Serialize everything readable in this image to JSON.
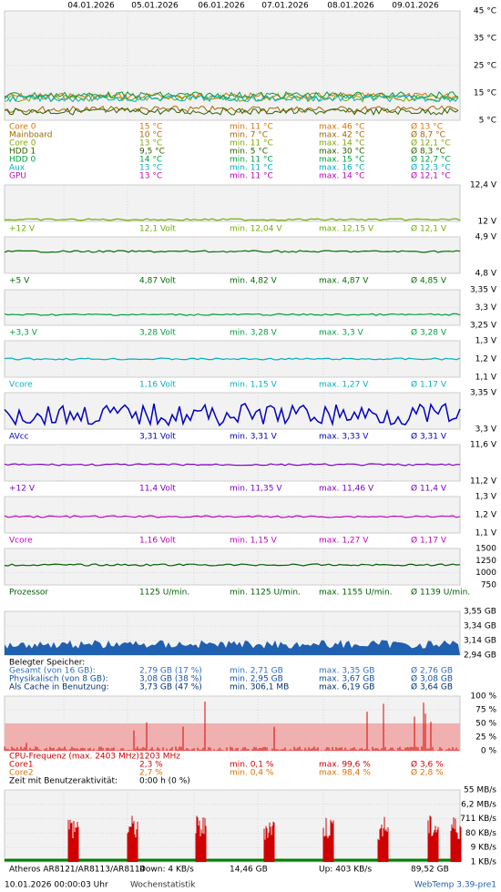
{
  "dates": [
    "04.01.2026",
    "05.01.2026",
    "06.01.2026",
    "07.01.2026",
    "08.01.2026",
    "09.01.2026"
  ],
  "panels": [
    {
      "axis": [
        "45 °C",
        "35 °C",
        "25 °C",
        "15 °C",
        "5 °C"
      ],
      "rows": [
        {
          "color": "#e07000",
          "cells": [
            "Core 0",
            "15 °C",
            "min. 11 °C",
            "max. 46 °C",
            "Ø 13 °C"
          ]
        },
        {
          "color": "#a06800",
          "cells": [
            "Mainboard",
            "10 °C",
            "min. 7 °C",
            "max. 42 °C",
            "Ø 8,7 °C"
          ]
        },
        {
          "color": "#80a800",
          "cells": [
            "Core 0",
            "13 °C",
            "min. 11 °C",
            "max. 14 °C",
            "Ø 12,1 °C"
          ]
        },
        {
          "color": "#306000",
          "cells": [
            "HDD 1",
            "9,5 °C",
            "min. 5 °C",
            "max. 30 °C",
            "Ø 8,3 °C"
          ]
        },
        {
          "color": "#00a040",
          "cells": [
            "HDD 0",
            "14 °C",
            "min. 11 °C",
            "max. 15 °C",
            "Ø 12,7 °C"
          ]
        },
        {
          "color": "#00b0c0",
          "cells": [
            "Aux",
            "13 °C",
            "min. 11 °C",
            "max. 16 °C",
            "Ø 12,3 °C"
          ]
        },
        {
          "color": "#c000c0",
          "cells": [
            "GPU",
            "13 °C",
            "min. 11 °C",
            "max. 14 °C",
            "Ø 12,1 °C"
          ]
        }
      ]
    },
    {
      "axis": [
        "12,4 V",
        "12 V"
      ],
      "rows": [
        {
          "color": "#70b000",
          "cells": [
            "+12 V",
            "12,1 Volt",
            "min. 12,04 V",
            "max. 12,15 V",
            "Ø 12,1 V"
          ]
        }
      ]
    },
    {
      "axis": [
        "4,9 V",
        "4,8 V"
      ],
      "rows": [
        {
          "color": "#007000",
          "cells": [
            "+5 V",
            "4,87 Volt",
            "min. 4,82 V",
            "max. 4,87 V",
            "Ø 4,85 V"
          ]
        }
      ]
    },
    {
      "axis": [
        "3,35 V",
        "3,3 V",
        "3,25 V"
      ],
      "rows": [
        {
          "color": "#00a040",
          "cells": [
            "+3,3 V",
            "3,28 Volt",
            "min. 3,28 V",
            "max. 3,3 V",
            "Ø 3,28 V"
          ]
        }
      ]
    },
    {
      "axis": [
        "1,3 V",
        "1,2 V",
        "1,1 V"
      ],
      "rows": [
        {
          "color": "#00b0c0",
          "cells": [
            "Vcore",
            "1,16 Volt",
            "min. 1,15 V",
            "max. 1,27 V",
            "Ø 1,17 V"
          ]
        }
      ]
    },
    {
      "axis": [
        "3,35 V",
        "3,3 V"
      ],
      "rows": [
        {
          "color": "#0000c0",
          "cells": [
            "AVcc",
            "3,31 Volt",
            "min. 3,31 V",
            "max. 3,33 V",
            "Ø 3,31 V"
          ]
        }
      ]
    },
    {
      "axis": [
        "11,6 V",
        "11,2 V"
      ],
      "rows": [
        {
          "color": "#8000c0",
          "cells": [
            "+12 V",
            "11,4 Volt",
            "min. 11,35 V",
            "max. 11,46 V",
            "Ø 11,4 V"
          ]
        }
      ]
    },
    {
      "axis": [
        "1,3 V",
        "1,2 V",
        "1,1 V"
      ],
      "rows": [
        {
          "color": "#c000c0",
          "cells": [
            "Vcore",
            "1,16 Volt",
            "min. 1,15 V",
            "max. 1,27 V",
            "Ø 1,17 V"
          ]
        }
      ]
    },
    {
      "axis": [
        "1500",
        "1250",
        "1000",
        "750"
      ],
      "rows": [
        {
          "color": "#006000",
          "cells": [
            "Prozessor",
            "1125 U/min.",
            "min. 1125 U/min.",
            "max. 1155 U/min.",
            "Ø 1139 U/min."
          ]
        }
      ]
    },
    {
      "axis": [
        "3,55 GB",
        "3,34 GB",
        "3,14 GB",
        "2,94 GB"
      ],
      "rows": [
        {
          "color": "#000000",
          "cells": [
            "Belegter Speicher:"
          ]
        },
        {
          "color": "#3070c0",
          "cells": [
            "Gesamt (von 16 GB):",
            "2,79 GB (17 %)",
            "min. 2,71 GB",
            "max. 3,35 GB",
            "Ø 2,76 GB"
          ]
        },
        {
          "color": "#1050a0",
          "cells": [
            "Physikalisch (von 8 GB):",
            "3,08 GB (38 %)",
            "min. 2,95 GB",
            "max. 3,67 GB",
            "Ø 3,08 GB"
          ]
        },
        {
          "color": "#003070",
          "cells": [
            "Als Cache in Benutzung:",
            "3,73 GB (47 %)",
            "min. 306,1 MB",
            "max. 6,19 GB",
            "Ø 3,64 GB"
          ]
        }
      ]
    },
    {
      "axis": [
        "100 %",
        "75 %",
        "50 %",
        "25 %",
        "0 %"
      ],
      "rows": [
        {
          "color": "#d00000",
          "cells": [
            "CPU-Frequenz (max. 2403 MHz):",
            "1203 MHz"
          ]
        },
        {
          "color": "#d00000",
          "cells": [
            "Core1",
            "2,3 %",
            "min. 0,1 %",
            "max. 99,6 %",
            "Ø 3,6 %"
          ]
        },
        {
          "color": "#e07000",
          "cells": [
            "Core2",
            "2,7 %",
            "min. 0,4 %",
            "max. 98,4 %",
            "Ø 2,8 %"
          ]
        },
        {
          "color": "#000000",
          "cells": [
            "Zeit mit Benutzeraktivität:",
            "0:00 h (0 %)"
          ]
        }
      ]
    },
    {
      "axis": [
        "55 MB/s",
        "6,2 MB/s",
        "711 KB/s",
        "80 KB/s",
        "9 KB/s",
        "1 KB/s"
      ],
      "rows": [
        {
          "color": "#000000",
          "cells": [
            "Atheros AR8121/AR8113/AR8114",
            "Down: 4 KB/s",
            "14,46 GB",
            "Up: 403 KB/s",
            "89,52 GB"
          ]
        }
      ]
    }
  ],
  "footer": {
    "time": "10.01.2026 00:00:03 Uhr",
    "link": "Wochenstatistik",
    "version": "WebTemp 3.39-pre1"
  }
}
